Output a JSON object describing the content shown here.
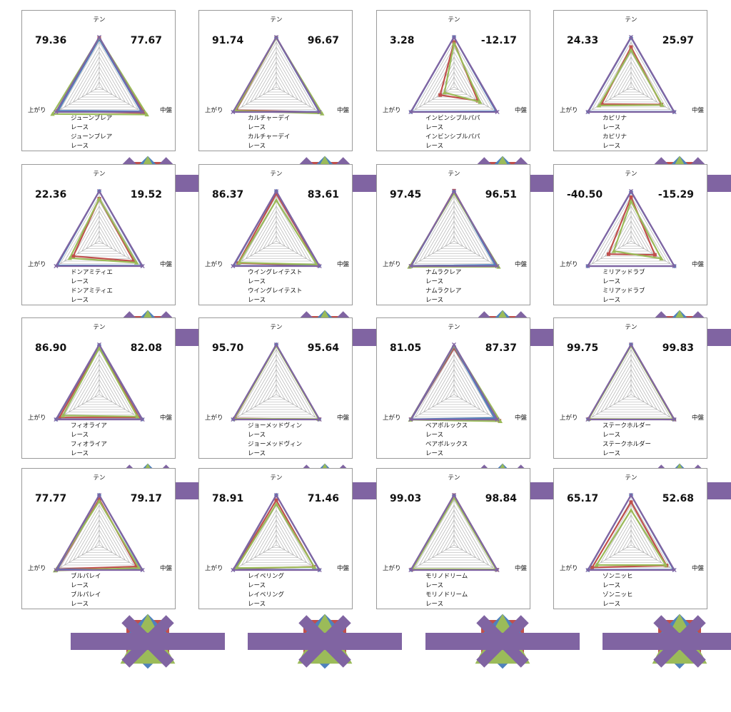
{
  "colors": {
    "red": "#c0504d",
    "blue": "#4f81bd",
    "green": "#9bbb59",
    "purple": "#8064a2",
    "grid": "#a6a6a6"
  },
  "axis_labels": {
    "top": "テン",
    "left": "上がり",
    "right": "中盤"
  },
  "chart_data": [
    {
      "type": "radar",
      "axes": [
        "テン",
        "中盤",
        "上がり"
      ],
      "scale": [
        0,
        100
      ],
      "left_number": "79.36",
      "right_number": "77.67",
      "series": [
        {
          "name": "ジューンブレア",
          "values": [
            98,
            104,
            96
          ]
        },
        {
          "name": "レース",
          "values": [
            96,
            97,
            95
          ]
        },
        {
          "name": "ジューンブレア",
          "values": [
            99,
            110,
            108
          ]
        },
        {
          "name": "レース",
          "values": [
            100,
            100,
            100
          ]
        }
      ]
    },
    {
      "type": "radar",
      "axes": [
        "テン",
        "中盤",
        "上がり"
      ],
      "scale": [
        0,
        100
      ],
      "left_number": "91.74",
      "right_number": "96.67",
      "series": [
        {
          "name": "カルチャーデイ",
          "values": [
            99,
            100,
            93
          ]
        },
        {
          "name": "レース",
          "values": [
            99,
            99,
            98
          ]
        },
        {
          "name": "カルチャーデイ",
          "values": [
            99,
            106,
            95
          ]
        },
        {
          "name": "レース",
          "values": [
            100,
            100,
            100
          ]
        }
      ]
    },
    {
      "type": "radar",
      "axes": [
        "テン",
        "中盤",
        "上がり"
      ],
      "scale": [
        0,
        100
      ],
      "left_number": "3.28",
      "right_number": "-12.17",
      "series": [
        {
          "name": "インビンシブルパパ",
          "values": [
            90,
            55,
            32
          ]
        },
        {
          "name": "レース",
          "values": [
            100,
            97,
            99
          ]
        },
        {
          "name": "インビンシブルパパ",
          "values": [
            87,
            60,
            22
          ]
        },
        {
          "name": "レース",
          "values": [
            100,
            100,
            100
          ]
        }
      ]
    },
    {
      "type": "radar",
      "axes": [
        "テン",
        "中盤",
        "上がり"
      ],
      "scale": [
        0,
        100
      ],
      "left_number": "24.33",
      "right_number": "25.97",
      "series": [
        {
          "name": "カピリナ",
          "values": [
            80,
            70,
            68
          ]
        },
        {
          "name": "レース",
          "values": [
            99,
            99,
            99
          ]
        },
        {
          "name": "カピリナ",
          "values": [
            74,
            72,
            74
          ]
        },
        {
          "name": "レース",
          "values": [
            100,
            100,
            100
          ]
        }
      ]
    },
    {
      "type": "radar",
      "axes": [
        "テン",
        "中盤",
        "上がり"
      ],
      "scale": [
        0,
        100
      ],
      "left_number": "22.36",
      "right_number": "19.52",
      "series": [
        {
          "name": "ドンアミティエ",
          "values": [
            85,
            80,
            60
          ]
        },
        {
          "name": "レース",
          "values": [
            100,
            98,
            97
          ]
        },
        {
          "name": "ドンアミティエ",
          "values": [
            85,
            86,
            68
          ]
        },
        {
          "name": "レース",
          "values": [
            100,
            100,
            100
          ]
        }
      ]
    },
    {
      "type": "radar",
      "axes": [
        "テン",
        "中盤",
        "上がり"
      ],
      "scale": [
        0,
        100
      ],
      "left_number": "86.37",
      "right_number": "83.61",
      "series": [
        {
          "name": "ウイングレイテスト",
          "values": [
            95,
            97,
            88
          ]
        },
        {
          "name": "レース",
          "values": [
            100,
            99,
            98
          ]
        },
        {
          "name": "ウイングレイテスト",
          "values": [
            82,
            94,
            86
          ]
        },
        {
          "name": "レース",
          "values": [
            100,
            100,
            100
          ]
        }
      ]
    },
    {
      "type": "radar",
      "axes": [
        "テン",
        "中盤",
        "上がり"
      ],
      "scale": [
        0,
        100
      ],
      "left_number": "97.45",
      "right_number": "96.51",
      "series": [
        {
          "name": "ナムラクレア",
          "values": [
            101,
            96,
            99
          ]
        },
        {
          "name": "レース",
          "values": [
            99,
            95,
            99
          ]
        },
        {
          "name": "ナムラクレア",
          "values": [
            96,
            103,
            103
          ]
        },
        {
          "name": "レース",
          "values": [
            100,
            100,
            100
          ]
        }
      ]
    },
    {
      "type": "radar",
      "axes": [
        "テン",
        "中盤",
        "上がり"
      ],
      "scale": [
        0,
        100
      ],
      "left_number": "-40.50",
      "right_number": "-15.29",
      "series": [
        {
          "name": "ミリアッドラブ",
          "values": [
            88,
            55,
            52
          ]
        },
        {
          "name": "レース",
          "values": [
            99,
            100,
            100
          ]
        },
        {
          "name": "ミリアッドラブ",
          "values": [
            80,
            70,
            40
          ]
        },
        {
          "name": "レース",
          "values": [
            100,
            100,
            100
          ]
        }
      ]
    },
    {
      "type": "radar",
      "axes": [
        "テン",
        "中盤",
        "上がり"
      ],
      "scale": [
        0,
        100
      ],
      "left_number": "86.90",
      "right_number": "82.08",
      "series": [
        {
          "name": "フィオライア",
          "values": [
            96,
            92,
            92
          ]
        },
        {
          "name": "レース",
          "values": [
            99,
            99,
            99
          ]
        },
        {
          "name": "フィオライア",
          "values": [
            93,
            88,
            84
          ]
        },
        {
          "name": "レース",
          "values": [
            100,
            100,
            100
          ]
        }
      ]
    },
    {
      "type": "radar",
      "axes": [
        "テン",
        "中盤",
        "上がり"
      ],
      "scale": [
        0,
        100
      ],
      "left_number": "95.70",
      "right_number": "95.64",
      "series": [
        {
          "name": "ジョーメッドヴィン",
          "values": [
            99,
            99,
            96
          ]
        },
        {
          "name": "レース",
          "values": [
            100,
            99,
            99
          ]
        },
        {
          "name": "ジョーメッドヴィン",
          "values": [
            98,
            98,
            97
          ]
        },
        {
          "name": "レース",
          "values": [
            100,
            100,
            100
          ]
        }
      ]
    },
    {
      "type": "radar",
      "axes": [
        "テン",
        "中盤",
        "上がり"
      ],
      "scale": [
        0,
        100
      ],
      "left_number": "81.05",
      "right_number": "87.37",
      "series": [
        {
          "name": "ベアボルックス",
          "values": [
            93,
            105,
            99
          ]
        },
        {
          "name": "レース",
          "values": [
            97,
            94,
            99
          ]
        },
        {
          "name": "ベアボルックス",
          "values": [
            98,
            107,
            101
          ]
        },
        {
          "name": "レース",
          "values": [
            100,
            100,
            100
          ]
        }
      ]
    },
    {
      "type": "radar",
      "axes": [
        "テン",
        "中盤",
        "上がり"
      ],
      "scale": [
        0,
        100
      ],
      "left_number": "99.75",
      "right_number": "99.83",
      "series": [
        {
          "name": "ステークホルダー",
          "values": [
            100,
            100,
            98
          ]
        },
        {
          "name": "レース",
          "values": [
            100,
            99,
            99
          ]
        },
        {
          "name": "ステークホルダー",
          "values": [
            98,
            98,
            98
          ]
        },
        {
          "name": "レース",
          "values": [
            100,
            100,
            100
          ]
        }
      ]
    },
    {
      "type": "radar",
      "axes": [
        "テン",
        "中盤",
        "上がり"
      ],
      "scale": [
        0,
        100
      ],
      "left_number": "77.77",
      "right_number": "79.17",
      "series": [
        {
          "name": "ブルパレイ",
          "values": [
            92,
            86,
            96
          ]
        },
        {
          "name": "レース",
          "values": [
            100,
            98,
            97
          ]
        },
        {
          "name": "ブルパレイ",
          "values": [
            88,
            92,
            102
          ]
        },
        {
          "name": "レース",
          "values": [
            100,
            100,
            100
          ]
        }
      ]
    },
    {
      "type": "radar",
      "axes": [
        "テン",
        "中盤",
        "上がり"
      ],
      "scale": [
        0,
        100
      ],
      "left_number": "78.91",
      "right_number": "71.46",
      "series": [
        {
          "name": "レイベリング",
          "values": [
            90,
            87,
            95
          ]
        },
        {
          "name": "レース",
          "values": [
            100,
            99,
            98
          ]
        },
        {
          "name": "レイベリング",
          "values": [
            82,
            88,
            92
          ]
        },
        {
          "name": "レース",
          "values": [
            100,
            100,
            100
          ]
        }
      ]
    },
    {
      "type": "radar",
      "axes": [
        "テン",
        "中盤",
        "上がり"
      ],
      "scale": [
        0,
        100
      ],
      "left_number": "99.03",
      "right_number": "98.84",
      "series": [
        {
          "name": "モリノドリーム",
          "values": [
            100,
            99,
            98
          ]
        },
        {
          "name": "レース",
          "values": [
            99,
            98,
            99
          ]
        },
        {
          "name": "モリノドリーム",
          "values": [
            95,
            97,
            96
          ]
        },
        {
          "name": "レース",
          "values": [
            100,
            100,
            100
          ]
        }
      ]
    },
    {
      "type": "radar",
      "axes": [
        "テン",
        "中盤",
        "上がり"
      ],
      "scale": [
        0,
        100
      ],
      "left_number": "65.17",
      "right_number": "52.68",
      "series": [
        {
          "name": "ゾンニッヒ",
          "values": [
            86,
            82,
            90
          ]
        },
        {
          "name": "レース",
          "values": [
            100,
            98,
            99
          ]
        },
        {
          "name": "ゾンニッヒ",
          "values": [
            70,
            80,
            80
          ]
        },
        {
          "name": "レース",
          "values": [
            100,
            100,
            100
          ]
        }
      ]
    }
  ]
}
